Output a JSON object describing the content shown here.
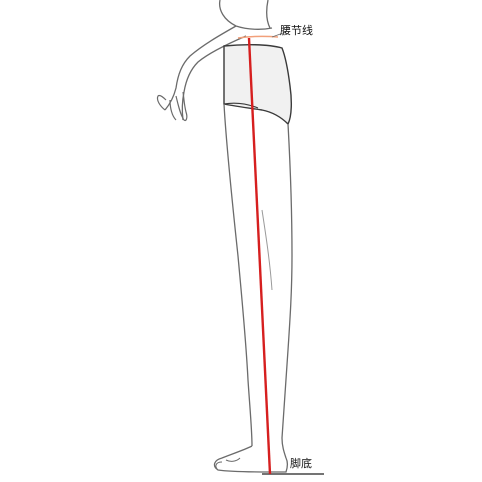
{
  "labels": {
    "waist_line": "腰节线",
    "sole": "脚底"
  },
  "colors": {
    "outline": "#6b6b6b",
    "measure_line": "#d61f1f",
    "waist_marker": "#f2a07a",
    "ground_line": "#222222",
    "background": "#ffffff"
  }
}
